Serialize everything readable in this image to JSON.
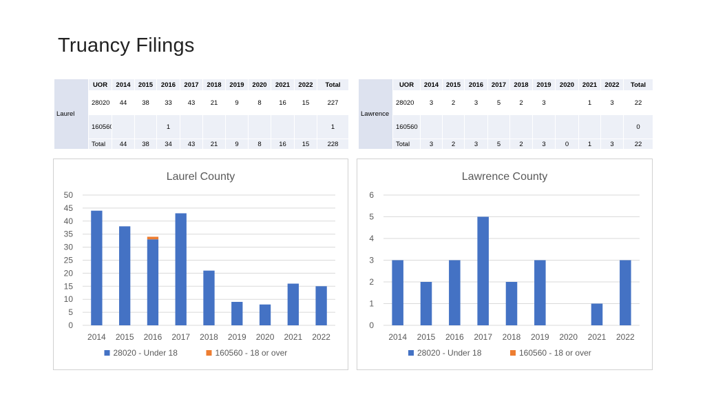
{
  "slide": {
    "title": "Truancy Filings"
  },
  "tables": [
    {
      "county": "Laurel",
      "headers": [
        "UOR",
        "2014",
        "2015",
        "2016",
        "2017",
        "2018",
        "2019",
        "2020",
        "2021",
        "2022",
        "Total"
      ],
      "rows": [
        [
          "28020",
          "44",
          "38",
          "33",
          "43",
          "21",
          "9",
          "8",
          "16",
          "15",
          "227"
        ],
        [
          "160560",
          "",
          "",
          "1",
          "",
          "",
          "",
          "",
          "",
          "",
          "1"
        ],
        [
          "Total",
          "44",
          "38",
          "34",
          "43",
          "21",
          "9",
          "8",
          "16",
          "15",
          "228"
        ]
      ]
    },
    {
      "county": "Lawrence",
      "headers": [
        "UOR",
        "2014",
        "2015",
        "2016",
        "2017",
        "2018",
        "2019",
        "2020",
        "2021",
        "2022",
        "Total"
      ],
      "rows": [
        [
          "28020",
          "3",
          "2",
          "3",
          "5",
          "2",
          "3",
          "",
          "1",
          "3",
          "22"
        ],
        [
          "160560",
          "",
          "",
          "",
          "",
          "",
          "",
          "",
          "",
          "",
          "0"
        ],
        [
          "Total",
          "3",
          "2",
          "3",
          "5",
          "2",
          "3",
          "0",
          "1",
          "3",
          "22"
        ]
      ]
    }
  ],
  "chart_data": [
    {
      "type": "bar",
      "stacked": true,
      "title": "Laurel County",
      "categories": [
        "2014",
        "2015",
        "2016",
        "2017",
        "2018",
        "2019",
        "2020",
        "2021",
        "2022"
      ],
      "series": [
        {
          "name": "28020 - Under 18",
          "color": "#4472c4",
          "values": [
            44,
            38,
            33,
            43,
            21,
            9,
            8,
            16,
            15
          ]
        },
        {
          "name": "160560 - 18 or over",
          "color": "#ed7d31",
          "values": [
            0,
            0,
            1,
            0,
            0,
            0,
            0,
            0,
            0
          ]
        }
      ],
      "ylim": [
        0,
        50
      ],
      "yticks": [
        0,
        5,
        10,
        15,
        20,
        25,
        30,
        35,
        40,
        45,
        50
      ],
      "grid": true,
      "legend": "bottom"
    },
    {
      "type": "bar",
      "stacked": true,
      "title": "Lawrence County",
      "categories": [
        "2014",
        "2015",
        "2016",
        "2017",
        "2018",
        "2019",
        "2020",
        "2021",
        "2022"
      ],
      "series": [
        {
          "name": "28020 - Under 18",
          "color": "#4472c4",
          "values": [
            3,
            2,
            3,
            5,
            2,
            3,
            0,
            1,
            3
          ]
        },
        {
          "name": "160560 - 18 or over",
          "color": "#ed7d31",
          "values": [
            0,
            0,
            0,
            0,
            0,
            0,
            0,
            0,
            0
          ]
        }
      ],
      "ylim": [
        0,
        6
      ],
      "yticks": [
        0,
        1,
        2,
        3,
        4,
        5,
        6
      ],
      "grid": true,
      "legend": "bottom"
    }
  ]
}
